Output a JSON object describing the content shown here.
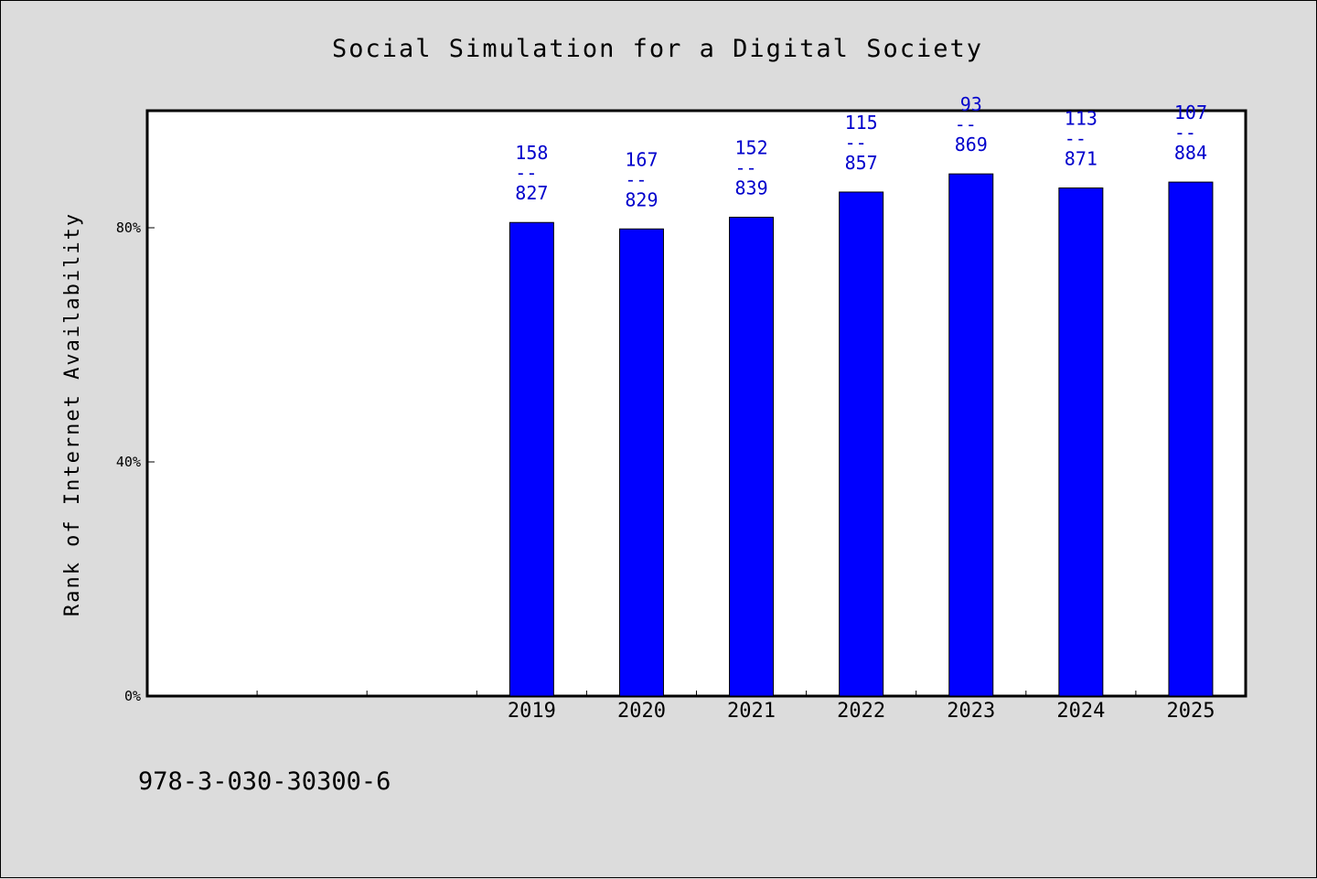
{
  "chart_data": {
    "type": "bar",
    "title": "Social Simulation for a Digital Society",
    "xlabel": "",
    "ylabel": "Rank of Internet Availability",
    "ylim": [
      0,
      100
    ],
    "yticks": [
      {
        "value": 0,
        "label": "0%"
      },
      {
        "value": 40,
        "label": "40%"
      },
      {
        "value": 80,
        "label": "80%"
      }
    ],
    "slots": [
      "",
      "",
      "",
      "2019",
      "2020",
      "2021",
      "2022",
      "2023",
      "2024",
      "2025"
    ],
    "categories": [
      "2019",
      "2020",
      "2021",
      "2022",
      "2023",
      "2024",
      "2025"
    ],
    "values": [
      80.9,
      79.8,
      81.8,
      86.1,
      89.2,
      86.8,
      87.8
    ],
    "labels": [
      {
        "top": "158",
        "sep": "--",
        "bottom": "827"
      },
      {
        "top": "167",
        "sep": "--",
        "bottom": "829"
      },
      {
        "top": "152",
        "sep": "--",
        "bottom": "839"
      },
      {
        "top": "115",
        "sep": "--",
        "bottom": "857"
      },
      {
        "top": "93",
        "sep": "--",
        "bottom": "869"
      },
      {
        "top": "113",
        "sep": "--",
        "bottom": "871"
      },
      {
        "top": "107",
        "sep": "--",
        "bottom": "884"
      }
    ],
    "bar_color": "#0000ff",
    "label_color": "#0000cc",
    "grid": false,
    "legend": "none"
  },
  "footer": {
    "isbn": "978-3-030-30300-6"
  }
}
